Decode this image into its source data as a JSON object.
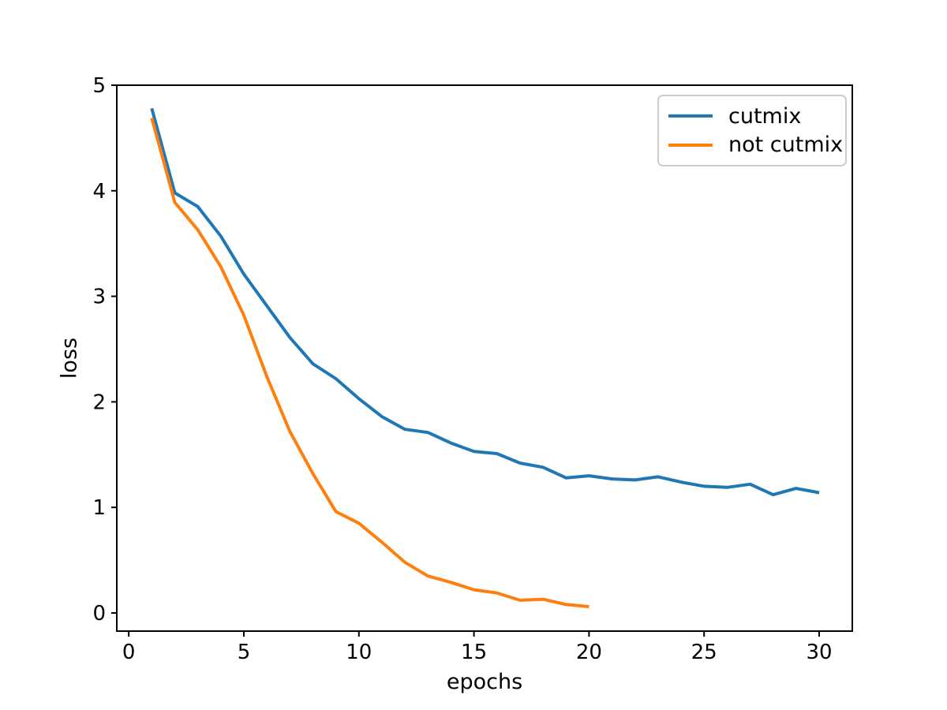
{
  "chart_data": {
    "type": "line",
    "title": "",
    "xlabel": "epochs",
    "ylabel": "loss",
    "xlim": [
      -0.52,
      31.44
    ],
    "ylim": [
      -0.172,
      5.0
    ],
    "x_ticks": [
      0,
      5,
      10,
      15,
      20,
      25,
      30
    ],
    "y_ticks": [
      0,
      1,
      2,
      3,
      4,
      5
    ],
    "grid": false,
    "legend": {
      "position": "upper right",
      "border_color": "#cccccc",
      "background": "#ffffff"
    },
    "axis_color": "#000000",
    "series": [
      {
        "name": "cutmix",
        "color": "#1f77b4",
        "x": [
          1,
          2,
          3,
          4,
          5,
          6,
          7,
          8,
          9,
          10,
          11,
          12,
          13,
          14,
          15,
          16,
          17,
          18,
          19,
          20,
          21,
          22,
          23,
          24,
          25,
          26,
          27,
          28,
          29,
          30
        ],
        "y": [
          4.78,
          3.98,
          3.85,
          3.57,
          3.21,
          2.91,
          2.61,
          2.36,
          2.22,
          2.03,
          1.86,
          1.74,
          1.71,
          1.61,
          1.53,
          1.51,
          1.42,
          1.38,
          1.28,
          1.3,
          1.27,
          1.26,
          1.29,
          1.24,
          1.2,
          1.19,
          1.22,
          1.12,
          1.18,
          1.14
        ]
      },
      {
        "name": "not cutmix",
        "color": "#ff7f0e",
        "x": [
          1,
          2,
          3,
          4,
          5,
          6,
          7,
          8,
          9,
          10,
          11,
          12,
          13,
          14,
          15,
          16,
          17,
          18,
          19,
          20
        ],
        "y": [
          4.69,
          3.89,
          3.63,
          3.28,
          2.82,
          2.24,
          1.72,
          1.32,
          0.96,
          0.85,
          0.67,
          0.48,
          0.35,
          0.29,
          0.22,
          0.19,
          0.12,
          0.13,
          0.08,
          0.06
        ]
      }
    ]
  }
}
